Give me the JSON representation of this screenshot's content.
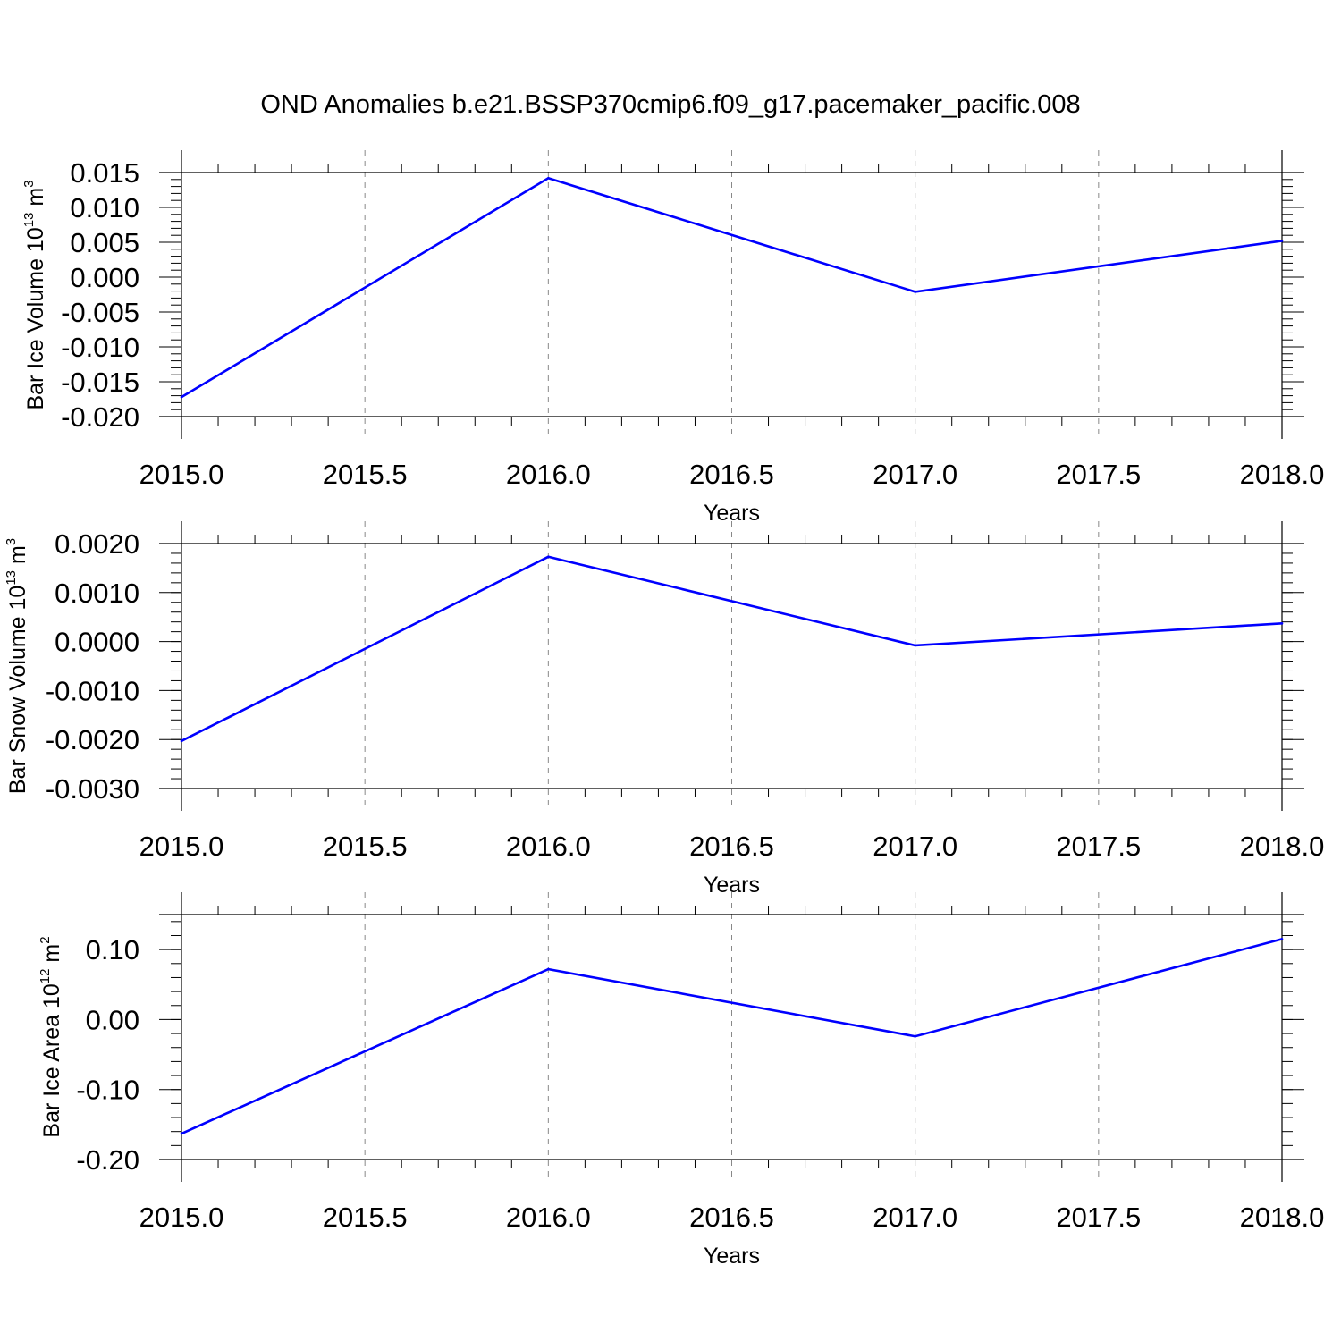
{
  "title": "OND Anomalies b.e21.BSSP370cmip6.f09_g17.pacemaker_pacific.008",
  "line_color": "#0000ff",
  "chart_data": [
    {
      "type": "line",
      "xlabel": "Years",
      "ylabel": "Bar Ice Volume 10",
      "ylabel_exp": "13",
      "ylabel_unit": " m",
      "ylabel_unit_exp": "3",
      "x": [
        2015.0,
        2016.0,
        2017.0,
        2018.0
      ],
      "values": [
        -0.0172,
        0.0142,
        -0.0021,
        0.0052
      ],
      "xlim": [
        2015.0,
        2018.0
      ],
      "ylim": [
        -0.02,
        0.015
      ],
      "x_ticks": [
        2015.0,
        2015.5,
        2016.0,
        2016.5,
        2017.0,
        2017.5,
        2018.0
      ],
      "x_tick_labels": [
        "2015.0",
        "2015.5",
        "2016.0",
        "2016.5",
        "2017.0",
        "2017.5",
        "2018.0"
      ],
      "y_ticks": [
        0.015,
        0.01,
        0.005,
        0.0,
        -0.005,
        -0.01,
        -0.015,
        -0.02
      ],
      "y_tick_labels": [
        "0.015",
        "0.010",
        "0.005",
        "0.000",
        "-0.005",
        "-0.010",
        "-0.015",
        "-0.020"
      ],
      "grid": "vertical dashed"
    },
    {
      "type": "line",
      "xlabel": "Years",
      "ylabel": "Bar Snow Volume 10",
      "ylabel_exp": "13",
      "ylabel_unit": " m",
      "ylabel_unit_exp": "3",
      "x": [
        2015.0,
        2016.0,
        2017.0,
        2018.0
      ],
      "values": [
        -0.00203,
        0.00173,
        -8e-05,
        0.00037
      ],
      "xlim": [
        2015.0,
        2018.0
      ],
      "ylim": [
        -0.003,
        0.002
      ],
      "x_ticks": [
        2015.0,
        2015.5,
        2016.0,
        2016.5,
        2017.0,
        2017.5,
        2018.0
      ],
      "x_tick_labels": [
        "2015.0",
        "2015.5",
        "2016.0",
        "2016.5",
        "2017.0",
        "2017.5",
        "2018.0"
      ],
      "y_ticks": [
        0.002,
        0.001,
        0.0,
        -0.001,
        -0.002,
        -0.003
      ],
      "y_tick_labels": [
        "0.0020",
        "0.0010",
        "0.0000",
        "-0.0010",
        "-0.0020",
        "-0.0030"
      ],
      "grid": "vertical dashed"
    },
    {
      "type": "line",
      "xlabel": "Years",
      "ylabel": "Bar Ice Area 10",
      "ylabel_exp": "12",
      "ylabel_unit": " m",
      "ylabel_unit_exp": "2",
      "x": [
        2015.0,
        2016.0,
        2017.0,
        2018.0
      ],
      "values": [
        -0.163,
        0.072,
        -0.024,
        0.115
      ],
      "xlim": [
        2015.0,
        2018.0
      ],
      "ylim": [
        -0.2,
        0.15
      ],
      "x_ticks": [
        2015.0,
        2015.5,
        2016.0,
        2016.5,
        2017.0,
        2017.5,
        2018.0
      ],
      "x_tick_labels": [
        "2015.0",
        "2015.5",
        "2016.0",
        "2016.5",
        "2017.0",
        "2017.5",
        "2018.0"
      ],
      "y_ticks": [
        0.1,
        0.0,
        -0.1,
        -0.2
      ],
      "y_tick_labels": [
        "0.10",
        "0.00",
        "-0.10",
        "-0.20"
      ],
      "grid": "vertical dashed"
    }
  ]
}
